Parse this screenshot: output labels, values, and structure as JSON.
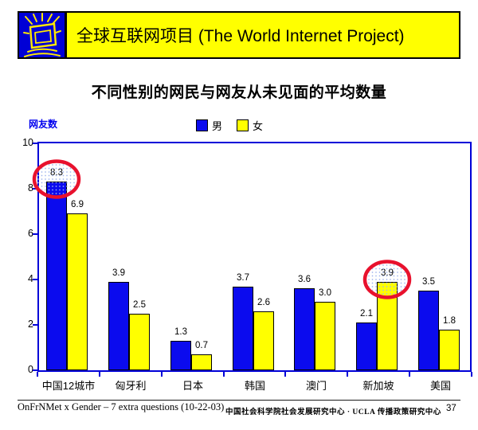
{
  "header": {
    "title": "全球互联网项目 (The World Internet Project)",
    "banner_bg": "#FFFF00",
    "logo_bg": "#0000D6",
    "logo_draw_color": "#FFE800"
  },
  "slide_title": "不同性别的网民与网友从未见面的平均数量",
  "chart": {
    "y_axis_title": "网友数",
    "y_axis_title_color": "#0000EE",
    "axis_color": "#0000D8",
    "legend": [
      {
        "label": "男",
        "color": "#0B0BEE"
      },
      {
        "label": "女",
        "color": "#FFFF00"
      }
    ]
  },
  "chart_data": {
    "type": "bar",
    "title": "不同性别的网民与网友从未见面的平均数量",
    "categories": [
      "中国12城市",
      "匈牙利",
      "日本",
      "韩国",
      "澳门",
      "新加坡",
      "美国"
    ],
    "series": [
      {
        "name": "男",
        "color": "#0B0BEE",
        "values": [
          8.3,
          3.9,
          1.3,
          3.7,
          3.6,
          2.1,
          3.5
        ]
      },
      {
        "name": "女",
        "color": "#FFFF00",
        "values": [
          6.9,
          2.5,
          0.7,
          2.6,
          3.0,
          3.9,
          1.8
        ]
      }
    ],
    "ylabel": "网友数",
    "xlabel": "",
    "ylim": [
      0,
      10
    ],
    "yticks": [
      0,
      2,
      4,
      6,
      8,
      10
    ],
    "grid": false,
    "legend_position": "top-center",
    "value_labels": true,
    "annotations": [
      {
        "shape": "ellipse",
        "series_index": 0,
        "category_index": 0,
        "value": 8.3,
        "stroke": "#E8112D",
        "fill": "light-blue-dots"
      },
      {
        "shape": "ellipse",
        "series_index": 1,
        "category_index": 5,
        "value": 3.9,
        "stroke": "#E8112D",
        "fill": "light-blue-dots"
      }
    ]
  },
  "footer": {
    "left": "OnFrNMet x Gender – 7 extra questions (10-22-03)",
    "center": "中国社会科学院社会发展研究中心 · UCLA 传播政策研究中心",
    "page_number": "37"
  }
}
